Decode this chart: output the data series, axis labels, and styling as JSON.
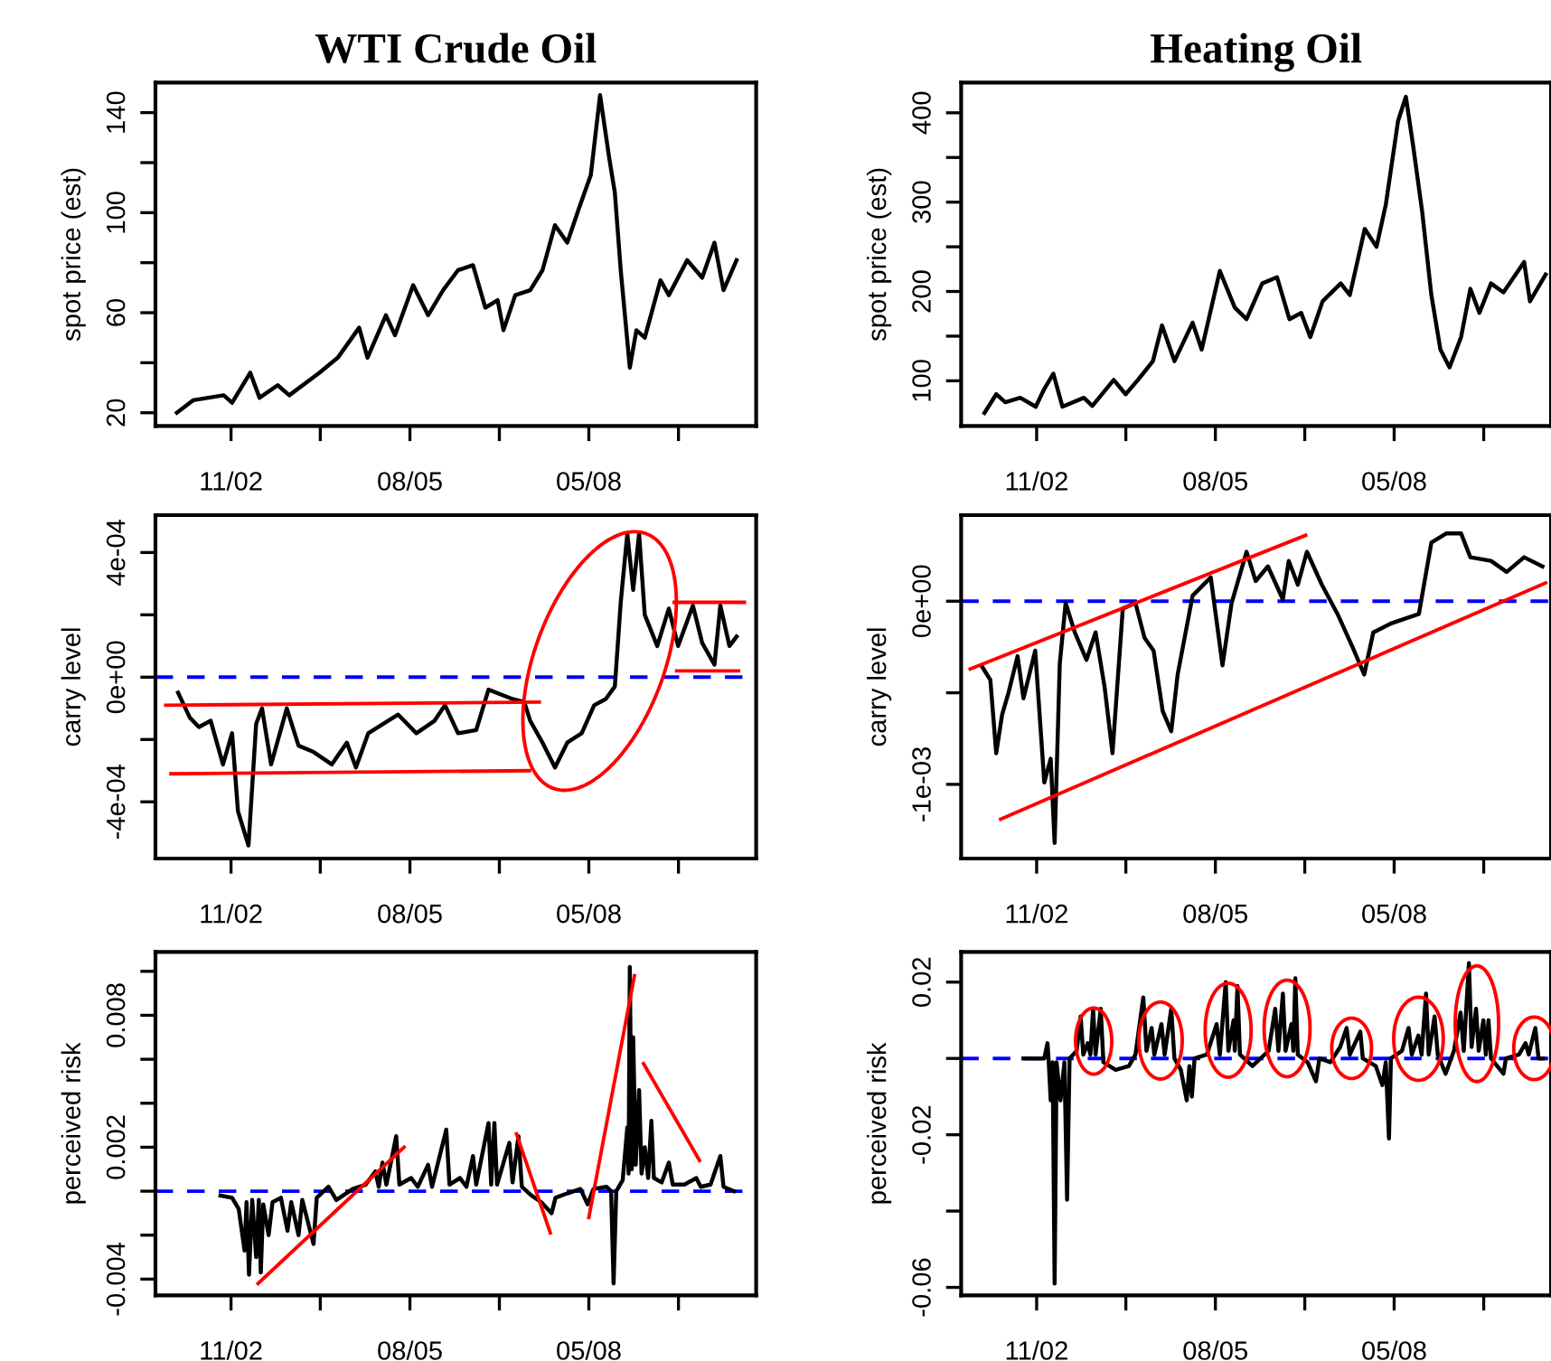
{
  "chart_data": [
    {
      "type": "line",
      "title": "WTI Crude Oil",
      "ylabel": "spot price (est)",
      "xlim": [
        "2001-09-03",
        "2010-11-26"
      ],
      "ylim": [
        14.7,
        152
      ],
      "xticks": [
        {
          "value": "2002-11-01",
          "label": "11/02"
        },
        {
          "value": "2004-03-16",
          "label": null
        },
        {
          "value": "2005-08-01",
          "label": "08/05"
        },
        {
          "value": "2006-12-16",
          "label": null
        },
        {
          "value": "2008-05-01",
          "label": "05/08"
        },
        {
          "value": "2009-09-16",
          "label": null
        }
      ],
      "yticks": [
        {
          "value": 20,
          "label": "20"
        },
        {
          "value": 40,
          "label": null
        },
        {
          "value": 60,
          "label": "60"
        },
        {
          "value": 80,
          "label": null
        },
        {
          "value": 100,
          "label": "100"
        },
        {
          "value": 120,
          "label": null
        },
        {
          "value": 140,
          "label": "140"
        }
      ],
      "grid": false,
      "legend": false,
      "series": [
        {
          "color": "#000000",
          "x": [
            "2002-01-01",
            "2002-04-02",
            "2002-09-21",
            "2002-11-07",
            "2003-02-17",
            "2003-04-10",
            "2003-07-21",
            "2003-09-24",
            "2004-03-11",
            "2004-06-22",
            "2004-10-20",
            "2004-12-06",
            "2005-03-19",
            "2005-05-09",
            "2005-08-19",
            "2005-11-11",
            "2006-02-03",
            "2006-04-28",
            "2006-07-21",
            "2006-09-28",
            "2006-12-06",
            "2007-01-08",
            "2007-03-15",
            "2007-06-07",
            "2007-08-15",
            "2007-10-24",
            "2008-01-01",
            "2008-03-08",
            "2008-05-12",
            "2008-07-03",
            "2008-08-23",
            "2008-09-24",
            "2008-10-27",
            "2008-12-17",
            "2009-01-23",
            "2009-03-11",
            "2009-06-07",
            "2009-07-24",
            "2009-11-04",
            "2010-01-27",
            "2010-04-06",
            "2010-05-27",
            "2010-08-08"
          ],
          "values": [
            20,
            25,
            27,
            24,
            36,
            26,
            31,
            27,
            36,
            42,
            54,
            42,
            59,
            51,
            71,
            59,
            69,
            77,
            79,
            62,
            65,
            53,
            67,
            69,
            77,
            95,
            88,
            102,
            115,
            147,
            122,
            108,
            77,
            38,
            53,
            50,
            73,
            67,
            81,
            74,
            88,
            69,
            81
          ]
        }
      ]
    },
    {
      "type": "line",
      "title": "Heating Oil",
      "ylabel": "spot price (est)",
      "xlim": [
        "2001-09-03",
        "2010-09-29"
      ],
      "ylim": [
        49.4,
        433.8
      ],
      "xticks": [
        {
          "value": "2002-11-01",
          "label": "11/02"
        },
        {
          "value": "2004-03-16",
          "label": null
        },
        {
          "value": "2005-08-01",
          "label": "08/05"
        },
        {
          "value": "2006-12-16",
          "label": null
        },
        {
          "value": "2008-05-01",
          "label": "05/08"
        },
        {
          "value": "2009-09-16",
          "label": null
        }
      ],
      "yticks": [
        {
          "value": 100,
          "label": "100"
        },
        {
          "value": 150,
          "label": null
        },
        {
          "value": 200,
          "label": "200"
        },
        {
          "value": 250,
          "label": null
        },
        {
          "value": 300,
          "label": "300"
        },
        {
          "value": 350,
          "label": null
        },
        {
          "value": 400,
          "label": "400"
        }
      ],
      "grid": false,
      "legend": false,
      "series": [
        {
          "color": "#000000",
          "x": [
            "2002-01-12",
            "2002-03-19",
            "2002-05-09",
            "2002-08-01",
            "2002-10-27",
            "2002-12-14",
            "2003-02-03",
            "2003-03-26",
            "2003-07-24",
            "2003-09-10",
            "2004-01-08",
            "2004-03-15",
            "2004-05-23",
            "2004-08-15",
            "2004-10-05",
            "2004-12-14",
            "2005-03-26",
            "2005-05-16",
            "2005-08-26",
            "2005-11-18",
            "2006-01-23",
            "2006-04-21",
            "2006-07-13",
            "2006-09-21",
            "2006-11-26",
            "2007-01-16",
            "2007-03-26",
            "2007-07-06",
            "2007-08-26",
            "2007-11-18",
            "2008-01-23",
            "2008-03-15",
            "2008-05-23",
            "2008-07-06",
            "2008-08-15",
            "2008-10-05",
            "2008-11-26",
            "2009-01-16",
            "2009-03-08",
            "2009-05-12",
            "2009-07-03",
            "2009-08-23",
            "2009-10-27",
            "2010-01-05",
            "2010-05-01",
            "2010-06-03",
            "2010-08-30"
          ],
          "values": [
            64,
            85,
            76,
            81,
            71,
            91,
            108,
            71,
            81,
            72,
            101,
            85,
            101,
            122,
            162,
            122,
            165,
            135,
            223,
            182,
            169,
            209,
            216,
            169,
            176,
            149,
            189,
            209,
            196,
            270,
            250,
            297,
            391,
            418,
            364,
            290,
            196,
            135,
            115,
            149,
            203,
            176,
            209,
            199,
            233,
            189,
            219
          ]
        }
      ]
    },
    {
      "type": "line",
      "ylabel": "carry level",
      "xlim": [
        "2001-09-03",
        "2010-11-26"
      ],
      "ylim": [
        -0.000582,
        0.00052
      ],
      "xticks": [
        {
          "value": "2002-11-01",
          "label": "11/02"
        },
        {
          "value": "2004-03-16",
          "label": null
        },
        {
          "value": "2005-08-01",
          "label": "08/05"
        },
        {
          "value": "2006-12-16",
          "label": null
        },
        {
          "value": "2008-05-01",
          "label": "05/08"
        },
        {
          "value": "2009-09-16",
          "label": null
        }
      ],
      "yticks": [
        {
          "value": -0.0004,
          "label": "-4e-04"
        },
        {
          "value": -0.0002,
          "label": null
        },
        {
          "value": 0,
          "label": "0e+00"
        },
        {
          "value": 0.0002,
          "label": null
        },
        {
          "value": 0.0004,
          "label": "4e-04"
        }
      ],
      "grid": false,
      "legend": false,
      "ref_lines": [
        {
          "axis": "y",
          "value": 0,
          "color": "#0000ff",
          "line_style": "dashed"
        }
      ],
      "series": [
        {
          "color": "#000000",
          "x": [
            "2002-01-08",
            "2002-03-15",
            "2002-05-05",
            "2002-07-10",
            "2002-09-17",
            "2002-11-07",
            "2002-12-10",
            "2003-02-07",
            "2003-03-22",
            "2003-04-24",
            "2003-06-14",
            "2003-09-10",
            "2003-11-15",
            "2004-02-07",
            "2004-05-20",
            "2004-08-12",
            "2004-10-02",
            "2004-12-10",
            "2005-05-27",
            "2005-09-06",
            "2005-12-17",
            "2006-02-14",
            "2006-04-28",
            "2006-08-08",
            "2006-10-16",
            "2007-02-28",
            "2007-05-05",
            "2007-06-07",
            "2007-08-15",
            "2007-10-24",
            "2008-01-01",
            "2008-03-22",
            "2008-05-31",
            "2008-08-04",
            "2008-09-24",
            "2008-10-27",
            "2008-12-03",
            "2009-01-05",
            "2009-02-07",
            "2009-03-11",
            "2009-05-20",
            "2009-07-24",
            "2009-09-14",
            "2009-12-06",
            "2010-01-27",
            "2010-04-06",
            "2010-05-09",
            "2010-06-29",
            "2010-08-08"
          ],
          "values": [
            -5e-05,
            -0.00013,
            -0.00016,
            -0.00014,
            -0.00028,
            -0.00018,
            -0.00043,
            -0.00054,
            -0.00015,
            -0.0001,
            -0.00028,
            -0.0001,
            -0.00022,
            -0.00024,
            -0.00028,
            -0.00021,
            -0.00029,
            -0.00018,
            -0.00012,
            -0.00018,
            -0.00014,
            -9e-05,
            -0.00018,
            -0.00017,
            -4e-05,
            -7e-05,
            -8e-05,
            -0.00014,
            -0.00021,
            -0.00029,
            -0.00021,
            -0.00018,
            -9e-05,
            -7e-05,
            -3e-05,
            0.00024,
            0.00046,
            0.00028,
            0.00046,
            0.0002,
            0.0001,
            0.00022,
            0.0001,
            0.00023,
            0.00011,
            4e-05,
            0.00023,
            0.0001,
            0.00013
          ]
        },
        {
          "type": "line",
          "color": "#ff0000",
          "x": [
            "2001-10-31",
            "2007-07-28"
          ],
          "values": [
            -9e-05,
            -8e-05
          ]
        },
        {
          "type": "line",
          "color": "#ff0000",
          "x": [
            "2001-11-29",
            "2007-06-03"
          ],
          "values": [
            -0.00031,
            -0.0003
          ]
        },
        {
          "type": "line",
          "color": "#ff0000",
          "x": [
            "2009-08-23",
            "2010-09-21"
          ],
          "values": [
            0.00024,
            0.00024
          ]
        },
        {
          "type": "line",
          "color": "#ff0000",
          "x": [
            "2009-09-06",
            "2010-08-19"
          ],
          "values": [
            2e-05,
            2e-05
          ]
        }
      ]
    },
    {
      "type": "line",
      "ylabel": "carry level",
      "xlim": [
        "2001-09-03",
        "2010-09-29"
      ],
      "ylim": [
        -0.001405,
        0.00047
      ],
      "xticks": [
        {
          "value": "2002-11-01",
          "label": "11/02"
        },
        {
          "value": "2004-03-16",
          "label": null
        },
        {
          "value": "2005-08-01",
          "label": "08/05"
        },
        {
          "value": "2006-12-16",
          "label": null
        },
        {
          "value": "2008-05-01",
          "label": "05/08"
        },
        {
          "value": "2009-09-16",
          "label": null
        }
      ],
      "yticks": [
        {
          "value": -0.001,
          "label": "-1e-03"
        },
        {
          "value": -0.0005,
          "label": null
        },
        {
          "value": 0,
          "label": "0e+00"
        }
      ],
      "grid": false,
      "legend": false,
      "ref_lines": [
        {
          "axis": "y",
          "value": 0,
          "color": "#0000ff",
          "line_style": "dashed"
        }
      ],
      "series": [
        {
          "color": "#000000",
          "x": [
            "2001-12-25",
            "2002-02-14",
            "2002-03-19",
            "2002-04-21",
            "2002-05-27",
            "2002-07-17",
            "2002-08-19",
            "2002-10-24",
            "2002-12-14",
            "2003-01-19",
            "2003-02-10",
            "2003-03-11",
            "2003-04-13",
            "2003-06-03",
            "2003-08-08",
            "2003-09-28",
            "2003-11-18",
            "2004-01-01",
            "2004-02-28",
            "2004-05-09",
            "2004-06-29",
            "2004-08-19",
            "2004-10-09",
            "2004-11-26",
            "2005-01-01",
            "2005-03-26",
            "2005-07-06",
            "2005-09-10",
            "2005-10-31",
            "2006-01-23",
            "2006-03-15",
            "2006-05-23",
            "2006-08-15",
            "2006-09-17",
            "2006-11-07",
            "2006-12-28",
            "2007-03-22",
            "2007-06-18",
            "2007-09-10",
            "2007-11-15",
            "2008-01-05",
            "2008-04-17",
            "2008-09-17",
            "2008-11-26",
            "2009-02-17",
            "2009-05-12",
            "2009-07-03",
            "2009-10-27",
            "2010-01-23",
            "2010-05-01",
            "2010-08-12"
          ],
          "values": [
            -0.00035,
            -0.00043,
            -0.00083,
            -0.00062,
            -0.0005,
            -0.0003,
            -0.00053,
            -0.00027,
            -0.00099,
            -0.00086,
            -0.00132,
            -0.00034,
            -1e-05,
            -0.00017,
            -0.00032,
            -0.00017,
            -0.00047,
            -0.00083,
            -4e-05,
            -1e-05,
            -0.0002,
            -0.00027,
            -0.0006,
            -0.00071,
            -0.0004,
            3e-05,
            0.00013,
            -0.00035,
            -1e-05,
            0.00027,
            0.00011,
            0.00019,
            1e-05,
            0.00022,
            9e-05,
            0.00027,
            9e-05,
            -7e-05,
            -0.00025,
            -0.0004,
            -0.00017,
            -0.00012,
            -7e-05,
            0.00032,
            0.00037,
            0.00037,
            0.00024,
            0.00022,
            0.00016,
            0.00024,
            0.00019
          ]
        },
        {
          "type": "line",
          "color": "#ff0000",
          "x": [
            "2001-10-24",
            "2006-12-21"
          ],
          "values": [
            -0.00037,
            0.00036
          ]
        },
        {
          "type": "line",
          "color": "#ff0000",
          "x": [
            "2002-04-13",
            "2010-08-30"
          ],
          "values": [
            -0.00119,
            0.0001
          ]
        }
      ]
    },
    {
      "type": "line",
      "ylabel": "perceived risk",
      "xlim": [
        "2001-09-03",
        "2010-11-26"
      ],
      "ylim": [
        -0.00474,
        0.01088
      ],
      "xticks": [
        {
          "value": "2002-11-01",
          "label": "11/02"
        },
        {
          "value": "2004-03-16",
          "label": null
        },
        {
          "value": "2005-08-01",
          "label": "08/05"
        },
        {
          "value": "2006-12-16",
          "label": null
        },
        {
          "value": "2008-05-01",
          "label": "05/08"
        },
        {
          "value": "2009-09-16",
          "label": null
        }
      ],
      "yticks": [
        {
          "value": -0.004,
          "label": "-0.004"
        },
        {
          "value": -0.002,
          "label": null
        },
        {
          "value": 0,
          "label": null
        },
        {
          "value": 0.002,
          "label": "0.002"
        },
        {
          "value": 0.004,
          "label": null
        },
        {
          "value": 0.006,
          "label": null
        },
        {
          "value": 0.008,
          "label": "0.008"
        },
        {
          "value": 0.01,
          "label": null
        }
      ],
      "grid": false,
      "legend": false,
      "ref_lines": [
        {
          "axis": "y",
          "value": 0,
          "color": "#0000ff",
          "line_style": "dashed"
        }
      ],
      "series": [
        {
          "color": "#000000",
          "x": [
            "2002-09-03",
            "2002-11-07",
            "2002-12-14",
            "2003-01-16",
            "2003-01-27",
            "2003-02-10",
            "2003-02-28",
            "2003-03-22",
            "2003-04-06",
            "2003-04-17",
            "2003-05-01",
            "2003-05-31",
            "2003-06-22",
            "2003-08-08",
            "2003-09-14",
            "2003-10-05",
            "2003-11-15",
            "2003-12-06",
            "2004-02-07",
            "2004-02-25",
            "2004-05-01",
            "2004-06-14",
            "2004-09-14",
            "2004-11-26",
            "2005-01-19",
            "2005-02-07",
            "2005-02-28",
            "2005-03-22",
            "2005-05-16",
            "2005-06-03",
            "2005-08-08",
            "2005-09-14",
            "2005-11-11",
            "2005-12-03",
            "2006-02-21",
            "2006-03-11",
            "2006-05-09",
            "2006-06-14",
            "2006-07-21",
            "2006-08-08",
            "2006-10-16",
            "2006-10-31",
            "2006-11-18",
            "2006-12-03",
            "2007-02-10",
            "2007-02-28",
            "2007-04-02",
            "2007-04-21",
            "2007-06-14",
            "2007-08-08",
            "2007-10-05",
            "2007-10-27",
            "2008-01-01",
            "2008-03-15",
            "2008-04-24",
            "2008-05-27",
            "2008-08-08",
            "2008-09-03",
            "2008-09-17",
            "2008-10-02",
            "2008-11-07",
            "2008-12-03",
            "2008-12-10",
            "2008-12-17",
            "2008-12-28",
            "2009-01-05",
            "2009-01-19",
            "2009-02-07",
            "2009-02-21",
            "2009-03-11",
            "2009-03-30",
            "2009-04-17",
            "2009-05-01",
            "2009-06-14",
            "2009-07-24",
            "2009-08-15",
            "2009-10-20",
            "2009-12-25",
            "2010-01-19",
            "2010-03-15",
            "2010-05-09",
            "2010-05-27",
            "2010-07-24"
          ],
          "values": [
            -0.0002,
            -0.0003,
            -0.0008,
            -0.0027,
            -0.0005,
            -0.0038,
            -0.0004,
            -0.003,
            -0.0004,
            -0.0037,
            -0.0006,
            -0.002,
            -0.0005,
            -0.0003,
            -0.0018,
            -0.0005,
            -0.002,
            -0.0004,
            -0.0024,
            -0.0003,
            0.0002,
            -0.0004,
            0.0001,
            0.0003,
            0.0009,
            0.0002,
            0.0013,
            0.0003,
            0.0025,
            0.0003,
            0.0006,
            0.0002,
            0.0012,
            0.0002,
            0.0028,
            0.0003,
            0.0006,
            0.0002,
            0.0016,
            0.0003,
            0.0031,
            0.0003,
            0.0031,
            0.0003,
            0.0022,
            0.0004,
            0.0025,
            0.0002,
            -0.0002,
            -0.0005,
            -0.001,
            -0.0003,
            -0.0001,
            0.0001,
            -0.0006,
            0.0001,
            0.0002,
            0.0,
            -0.0042,
            0.0,
            0.0005,
            0.0029,
            0.0008,
            0.0102,
            0.001,
            0.007,
            0.0012,
            0.0046,
            0.0008,
            0.002,
            0.0006,
            0.0032,
            0.0006,
            0.0004,
            0.0013,
            0.0003,
            0.0003,
            0.0006,
            0.0002,
            0.0003,
            0.0016,
            0.0002,
            0.0
          ]
        },
        {
          "type": "line",
          "color": "#ff0000",
          "x": [
            "2003-04-02",
            "2005-06-29"
          ],
          "values": [
            -0.0042,
            0.002
          ]
        },
        {
          "type": "line",
          "color": "#ff0000",
          "x": [
            "2007-03-22",
            "2007-09-28"
          ],
          "values": [
            0.0026,
            -0.0019
          ]
        },
        {
          "type": "line",
          "color": "#ff0000",
          "x": [
            "2008-05-01",
            "2009-01-12"
          ],
          "values": [
            -0.0012,
            0.0098
          ]
        },
        {
          "type": "line",
          "color": "#ff0000",
          "x": [
            "2009-03-04",
            "2010-01-12"
          ],
          "values": [
            0.0058,
            0.0014
          ]
        }
      ]
    },
    {
      "type": "line",
      "ylabel": "perceived risk",
      "xlim": [
        "2001-09-03",
        "2010-09-29"
      ],
      "ylim": [
        -0.0621,
        0.0279
      ],
      "xticks": [
        {
          "value": "2002-11-01",
          "label": "11/02"
        },
        {
          "value": "2004-03-16",
          "label": null
        },
        {
          "value": "2005-08-01",
          "label": "08/05"
        },
        {
          "value": "2006-12-16",
          "label": null
        },
        {
          "value": "2008-05-01",
          "label": "05/08"
        },
        {
          "value": "2009-09-16",
          "label": null
        }
      ],
      "yticks": [
        {
          "value": -0.06,
          "label": "-0.06"
        },
        {
          "value": -0.04,
          "label": null
        },
        {
          "value": -0.02,
          "label": "-0.02"
        },
        {
          "value": 0,
          "label": null
        },
        {
          "value": 0.02,
          "label": "0.02"
        }
      ],
      "grid": false,
      "legend": false,
      "ref_lines": [
        {
          "axis": "y",
          "value": 0,
          "color": "#0000ff",
          "line_style": "dashed"
        }
      ],
      "series": [
        {
          "color": "#000000",
          "x": [
            "2002-08-19",
            "2002-12-14",
            "2003-01-01",
            "2003-01-08",
            "2003-01-19",
            "2003-01-30",
            "2003-02-10",
            "2003-02-21",
            "2003-03-15",
            "2003-04-06",
            "2003-04-21",
            "2003-05-05",
            "2003-06-14",
            "2003-07-06",
            "2003-07-21",
            "2003-08-15",
            "2003-08-30",
            "2003-09-14",
            "2003-09-28",
            "2003-10-27",
            "2003-11-11",
            "2004-01-19",
            "2004-04-02",
            "2004-05-09",
            "2004-06-22",
            "2004-07-10",
            "2004-08-08",
            "2004-08-23",
            "2004-10-02",
            "2004-10-20",
            "2004-11-26",
            "2004-12-14",
            "2005-01-19",
            "2005-02-21",
            "2005-03-08",
            "2005-03-22",
            "2005-04-06",
            "2005-06-14",
            "2005-08-08",
            "2005-08-26",
            "2005-09-28",
            "2005-10-13",
            "2005-11-11",
            "2005-11-18",
            "2005-12-03",
            "2005-12-17",
            "2006-02-25",
            "2006-05-27",
            "2006-07-03",
            "2006-07-21",
            "2006-08-15",
            "2006-08-30",
            "2006-10-02",
            "2006-10-13",
            "2006-10-24",
            "2006-11-07",
            "2007-01-01",
            "2007-02-17",
            "2007-03-08",
            "2007-05-09",
            "2007-07-03",
            "2007-08-08",
            "2007-08-26",
            "2007-10-24",
            "2007-11-07",
            "2008-01-19",
            "2008-02-25",
            "2008-03-15",
            "2008-04-02",
            "2008-04-13",
            "2008-06-14",
            "2008-07-21",
            "2008-08-08",
            "2008-09-14",
            "2008-10-02",
            "2008-10-27",
            "2008-11-11",
            "2008-12-14",
            "2009-01-01",
            "2009-02-14",
            "2009-04-02",
            "2009-05-09",
            "2009-05-27",
            "2009-06-25",
            "2009-07-10",
            "2009-08-04",
            "2009-08-19",
            "2009-09-14",
            "2009-09-28",
            "2009-10-13",
            "2009-10-27",
            "2010-01-05",
            "2010-01-19",
            "2010-04-02",
            "2010-05-09",
            "2010-05-27",
            "2010-07-03",
            "2010-07-21",
            "2010-08-15"
          ],
          "values": [
            0,
            0,
            0.004,
            -0.001,
            -0.011,
            -0.001,
            -0.059,
            -0.001,
            -0.011,
            -0.001,
            -0.037,
            0,
            0.002,
            0.011,
            0.001,
            0.004,
            0.001,
            0.013,
            0.001,
            0.013,
            -0.001,
            -0.003,
            -0.002,
            0.001,
            0.016,
            0.002,
            0.008,
            0.001,
            0.009,
            0.001,
            0.013,
            0,
            -0.003,
            -0.011,
            -0.002,
            -0.01,
            0,
            0.001,
            0.009,
            0.001,
            0.02,
            0.002,
            0.01,
            0.002,
            0.019,
            0.001,
            -0.002,
            0.002,
            0.013,
            0.002,
            0.017,
            0.002,
            0.009,
            0.002,
            0.021,
            0.001,
            -0.001,
            -0.006,
            0,
            -0.001,
            0.003,
            0.008,
            0.001,
            0.007,
            0,
            -0.002,
            -0.007,
            -0.001,
            -0.021,
            0,
            0.002,
            0.008,
            0.001,
            0.006,
            0.001,
            0.017,
            0.001,
            0.011,
            0.001,
            -0.004,
            0.002,
            0.012,
            0.002,
            0.025,
            0.003,
            0.013,
            0.002,
            0.01,
            0.001,
            0.01,
            0,
            -0.004,
            0,
            0.001,
            0.004,
            0.001,
            0.008,
            0,
            0
          ]
        }
      ]
    }
  ]
}
